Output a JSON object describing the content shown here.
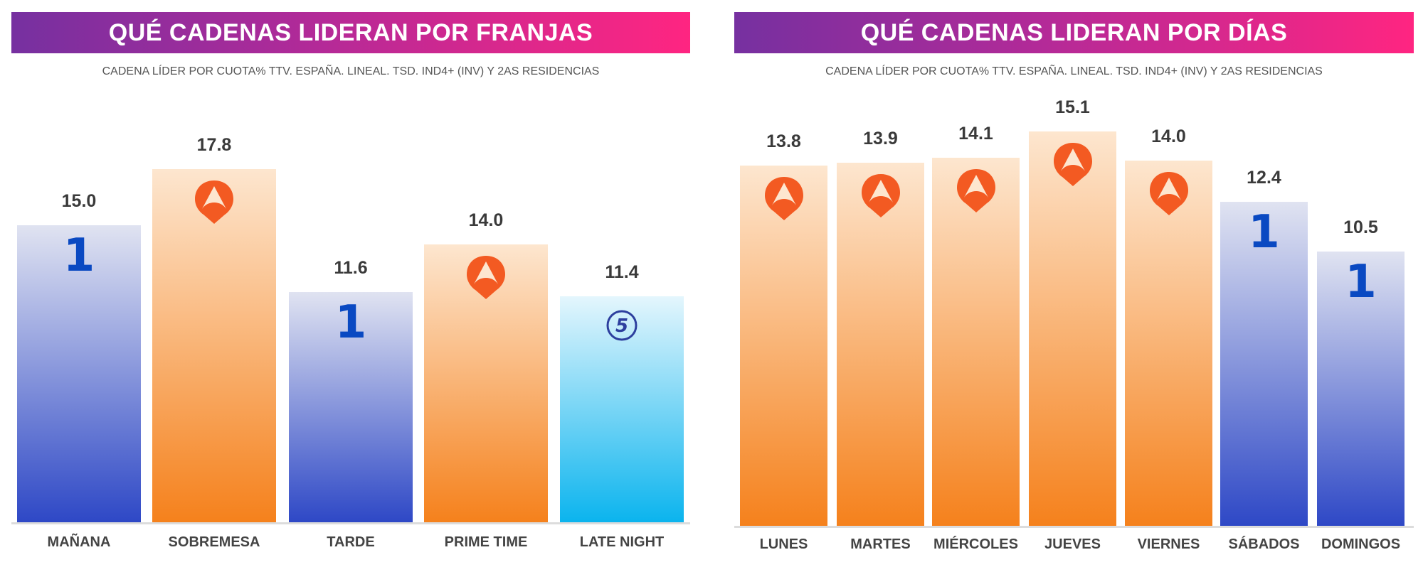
{
  "colors": {
    "antena3": {
      "top": "#fde6cf",
      "bottom": "#f5811c",
      "logo": "#f35a22"
    },
    "la1": {
      "top": "#e0e3f1",
      "bottom": "#2e48c6",
      "logo": "#0a49c2"
    },
    "telecinco": {
      "top": "#e4f6fd",
      "bottom": "#0bb4ee",
      "logo": "#2d3f9e"
    }
  },
  "chart_data": [
    {
      "type": "bar",
      "title": "QUÉ CADENAS LIDERAN POR FRANJAS",
      "subtitle": "CADENA LÍDER POR CUOTA% TTV. ESPAÑA. LINEAL. TSD. IND4+ (INV) Y 2AS RESIDENCIAS",
      "categories": [
        "MAÑANA",
        "SOBREMESA",
        "TARDE",
        "PRIME TIME",
        "LATE NIGHT"
      ],
      "values": [
        15.0,
        17.8,
        11.6,
        14.0,
        11.4
      ],
      "value_labels": [
        "15.0",
        "17.8",
        "11.6",
        "14.0",
        "11.4"
      ],
      "leader": [
        "la1",
        "antena3",
        "la1",
        "antena3",
        "telecinco"
      ],
      "leader_marks": [
        "1",
        "",
        "1",
        "",
        "5"
      ],
      "ylim": [
        0,
        18.5
      ],
      "grid": false
    },
    {
      "type": "bar",
      "title": "QUÉ CADENAS LIDERAN POR DÍAS",
      "subtitle": "CADENA LÍDER POR CUOTA% TTV. ESPAÑA. LINEAL. TSD. IND4+ (INV) Y 2AS RESIDENCIAS",
      "categories": [
        "LUNES",
        "MARTES",
        "MIÉRCOLES",
        "JUEVES",
        "VIERNES",
        "SÁBADOS",
        "DOMINGOS"
      ],
      "values": [
        13.8,
        13.9,
        14.1,
        15.1,
        14.0,
        12.4,
        10.5
      ],
      "value_labels": [
        "13.8",
        "13.9",
        "14.1",
        "15.1",
        "14.0",
        "12.4",
        "10.5"
      ],
      "leader": [
        "antena3",
        "antena3",
        "antena3",
        "antena3",
        "antena3",
        "la1",
        "la1"
      ],
      "leader_marks": [
        "",
        "",
        "",
        "",
        "",
        "1",
        "1"
      ],
      "ylim": [
        0,
        15.5
      ],
      "grid": false
    }
  ]
}
